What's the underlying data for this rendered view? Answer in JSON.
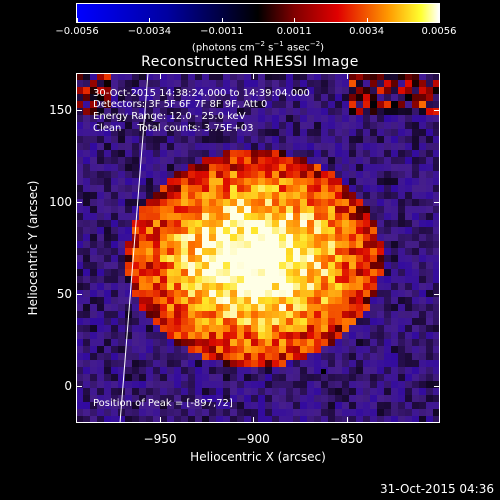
{
  "colorbar": {
    "ticks": [
      "−0.0056",
      "−0.0034",
      "−0.0011",
      "0.0011",
      "0.0034",
      "0.0056"
    ],
    "units_prefix": "(photons cm",
    "units_exp1": "−2",
    "units_mid": " s",
    "units_exp2": "−1",
    "units_mid2": " asec",
    "units_exp3": "−2",
    "units_suffix": ")"
  },
  "title": "Reconstructed RHESSI Image",
  "info": {
    "time": "30-Oct-2015 14:38:24.000 to 14:39:04.000",
    "detectors": "Detectors: 3F 5F 6F 7F 8F 9F, Att 0",
    "energy": "Energy Range: 12.0 - 25.0 keV",
    "clean": "Clean     Total counts: 3.75E+03",
    "peak": "Position of Peak = [-897,72]"
  },
  "axes": {
    "xlabel": "Heliocentric X (arcsec)",
    "ylabel": "Heliocentric Y (arcsec)",
    "xticks": [
      "−950",
      "−900",
      "−850"
    ],
    "yticks": [
      "150",
      "100",
      "50",
      "0"
    ]
  },
  "timestamp": "31-Oct-2015 04:36",
  "chart_data": {
    "type": "heatmap",
    "title": "Reconstructed RHESSI Image",
    "xlabel": "Heliocentric X (arcsec)",
    "ylabel": "Heliocentric Y (arcsec)",
    "xlim": [
      -995,
      -800
    ],
    "ylim": [
      -20,
      170
    ],
    "colorbar_range": [
      -0.0056,
      0.0056
    ],
    "peak_position": [
      -897,
      72
    ],
    "grid": false,
    "colors": {
      "low": "#0000ff",
      "mid_low": "#00007a",
      "zero": "#000000",
      "mid_high": "#cc0000",
      "high": "#ffff00",
      "top": "#ffffff"
    }
  }
}
